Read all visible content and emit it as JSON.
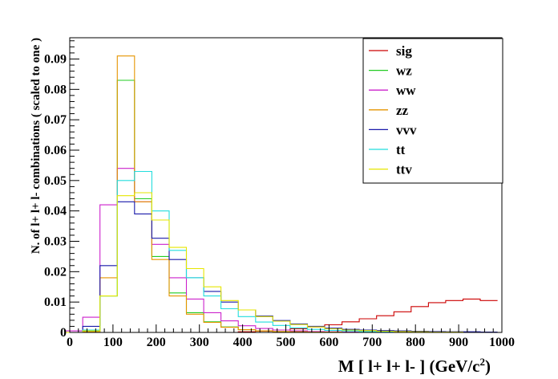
{
  "chart_data": {
    "type": "line",
    "style": "step-histogram",
    "title": "",
    "xlabel": "M [ l+ l+ l- ] (GeV/c",
    "xlabel_sup": "2",
    "xlabel_close": ")",
    "ylabel": "N. of l+ l+ l- combinations  ( scaled to one )",
    "xlim": [
      0,
      1000
    ],
    "ylim": [
      0,
      0.097
    ],
    "xticks": [
      0,
      100,
      200,
      300,
      400,
      500,
      600,
      700,
      800,
      900,
      1000
    ],
    "xtick_labels": [
      "0",
      "100",
      "200",
      "300",
      "400",
      "500",
      "600",
      "700",
      "800",
      "900",
      "1000"
    ],
    "yticks": [
      0,
      0.01,
      0.02,
      0.03,
      0.04,
      0.05,
      0.06,
      0.07,
      0.08,
      0.09
    ],
    "ytick_labels": [
      "0",
      "0.01",
      "0.02",
      "0.03",
      "0.04",
      "0.05",
      "0.06",
      "0.07",
      "0.08",
      "0.09"
    ],
    "legend_position": "top-right",
    "x_bin_centers": [
      10,
      50,
      90,
      130,
      170,
      210,
      250,
      290,
      330,
      370,
      410,
      450,
      490,
      530,
      570,
      610,
      650,
      690,
      730,
      770,
      810,
      850,
      890,
      930,
      970
    ],
    "series": [
      {
        "name": "sig",
        "color": "#cc0000",
        "values": [
          0,
          0,
          0,
          0,
          0,
          0,
          0,
          0,
          0,
          0,
          0.0002,
          0.0004,
          0.0008,
          0.0012,
          0.0018,
          0.0025,
          0.0035,
          0.0045,
          0.0055,
          0.0068,
          0.0085,
          0.0098,
          0.0105,
          0.011,
          0.0105
        ]
      },
      {
        "name": "wz",
        "color": "#22cc22",
        "values": [
          0,
          0.0003,
          0.012,
          0.083,
          0.044,
          0.025,
          0.013,
          0.0065,
          0.0035,
          0.0018,
          0.0009,
          0.0005,
          0.0003,
          0.0002,
          0.0001,
          0.0001,
          0,
          0,
          0,
          0,
          0,
          0,
          0,
          0,
          0
        ]
      },
      {
        "name": "ww",
        "color": "#cc22cc",
        "values": [
          0.0005,
          0.005,
          0.042,
          0.054,
          0.043,
          0.029,
          0.018,
          0.011,
          0.0065,
          0.0038,
          0.0022,
          0.0013,
          0.0008,
          0.0005,
          0.0003,
          0.0002,
          0.0001,
          0,
          0,
          0,
          0,
          0,
          0,
          0,
          0
        ]
      },
      {
        "name": "zz",
        "color": "#e69500",
        "values": [
          0,
          0.0002,
          0.018,
          0.091,
          0.043,
          0.024,
          0.012,
          0.006,
          0.0033,
          0.0017,
          0.0009,
          0.0005,
          0.0003,
          0.0002,
          0.0001,
          0.0001,
          0,
          0,
          0,
          0,
          0,
          0,
          0,
          0,
          0
        ]
      },
      {
        "name": "vvv",
        "color": "#1a1aaa",
        "values": [
          0,
          0.002,
          0.022,
          0.043,
          0.039,
          0.031,
          0.024,
          0.018,
          0.0135,
          0.01,
          0.0074,
          0.0054,
          0.0039,
          0.0028,
          0.002,
          0.0014,
          0.001,
          0.0008,
          0.0006,
          0.0005,
          0.0004,
          0.0003,
          0.0002,
          0.0002,
          0.0001
        ]
      },
      {
        "name": "tt",
        "color": "#22dddd",
        "values": [
          0,
          0.0008,
          0.012,
          0.05,
          0.053,
          0.04,
          0.027,
          0.018,
          0.012,
          0.0078,
          0.0052,
          0.0034,
          0.0023,
          0.0015,
          0.001,
          0.0007,
          0.0005,
          0.0003,
          0.0002,
          0.0001,
          0.0001,
          0,
          0,
          0,
          0
        ]
      },
      {
        "name": "ttv",
        "color": "#e6e600",
        "values": [
          0,
          0.0005,
          0.012,
          0.045,
          0.046,
          0.037,
          0.028,
          0.021,
          0.015,
          0.0105,
          0.0074,
          0.0052,
          0.0037,
          0.0026,
          0.0018,
          0.0012,
          0.0008,
          0.0006,
          0.0004,
          0.0003,
          0.0002,
          0.0001,
          0.0001,
          0,
          0
        ]
      }
    ]
  }
}
